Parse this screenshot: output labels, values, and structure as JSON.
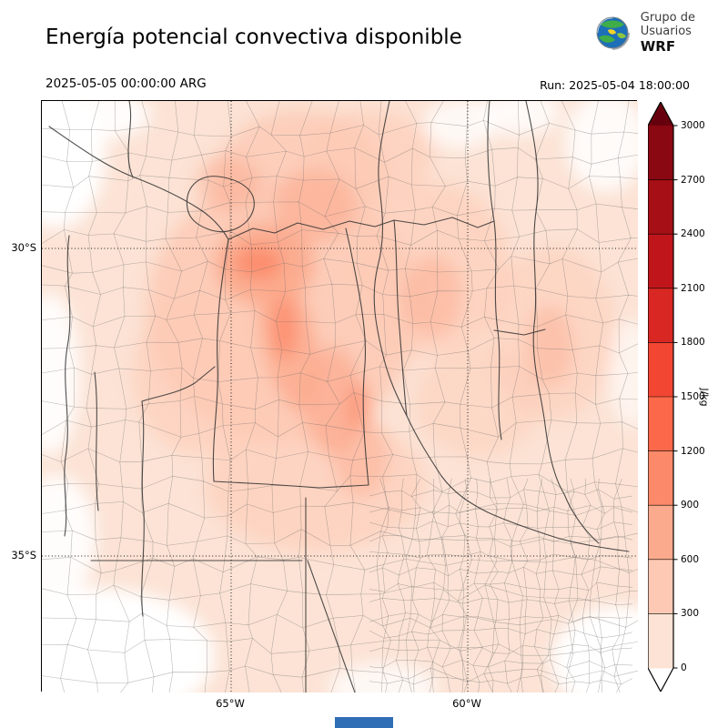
{
  "header": {
    "title": "Energía potencial convectiva disponible",
    "logo": {
      "line1": "Grupo de",
      "line2": "Usuarios",
      "line3": "WRF"
    }
  },
  "times": {
    "valid": "2025-05-05 00:00:00 ARG",
    "run": "Run: 2025-05-04 18:00:00"
  },
  "map_axes": {
    "lat_labels": [
      "30°S",
      "35°S"
    ],
    "lon_labels": [
      "65°W",
      "60°W"
    ]
  },
  "colorbar": {
    "unit": "J/kg",
    "tick_labels_top_to_bottom": [
      "3000",
      "2700",
      "2400",
      "2100",
      "1800",
      "1500",
      "1200",
      "900",
      "600",
      "300",
      "0"
    ],
    "segment_colors_top_to_bottom": [
      "#8a0812",
      "#a50f15",
      "#c0161b",
      "#d92723",
      "#f24633",
      "#fb694a",
      "#fc8a6a",
      "#fcaa8d",
      "#fdc9b4",
      "#fce3d5"
    ],
    "over_arrow_color": "#67000d",
    "under_arrow_color": "#ffffff",
    "outline_color": "#000000"
  },
  "footer": {
    "bar_color": "#2f6db5"
  },
  "chart_data": {
    "type": "heatmap",
    "title": "Energía potencial convectiva disponible",
    "valid_time": "2025-05-05 00:00:00 ARG",
    "run_label": "Run: 2025-05-04 18:00:00",
    "units": "J/kg",
    "colorbar_ticks": [
      0,
      300,
      600,
      900,
      1200,
      1500,
      1800,
      2100,
      2400,
      2700,
      3000
    ],
    "value_range": [
      0,
      3000
    ],
    "lat_gridlines": [
      "30°S",
      "35°S"
    ],
    "lon_gridlines": [
      "65°W",
      "60°W"
    ],
    "field_summary": "CAPE mostly 0–600 J/kg over central-northern Argentina; local maxima ~900–1200 J/kg over the Córdoba sierras region; near-zero (white) along the Andes western edge and the SW and SE corners of the domain."
  }
}
